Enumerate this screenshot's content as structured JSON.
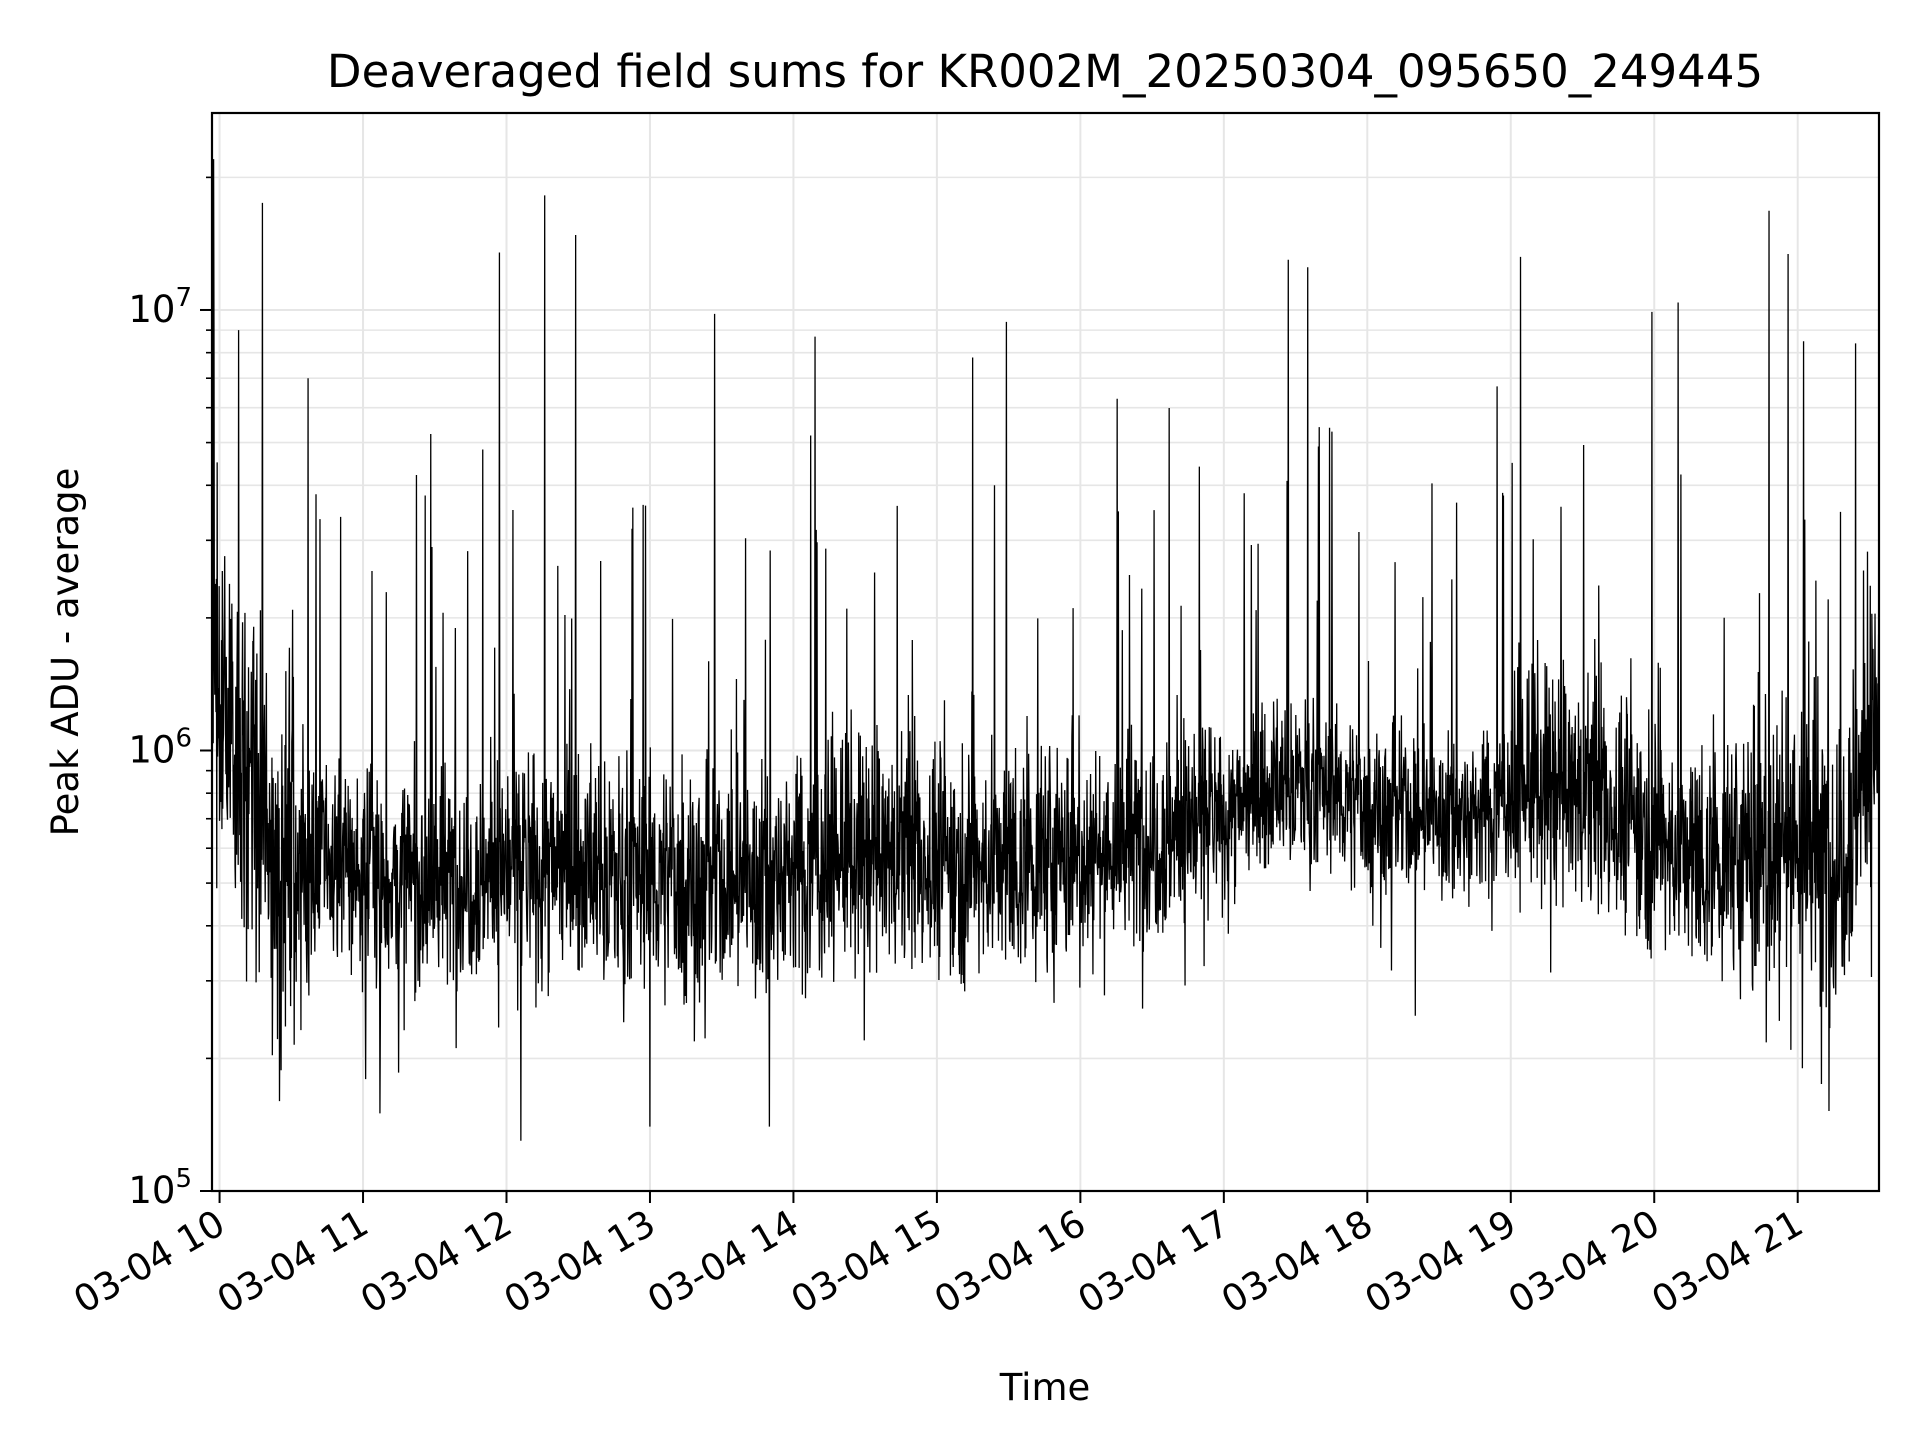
{
  "chart_data": {
    "type": "line",
    "title": "Deaveraged field sums for KR002M_20250304_095650_249445",
    "xlabel": "Time",
    "ylabel": "Peak ADU - average",
    "y_scale": "log",
    "ylim": [
      100000,
      28000000
    ],
    "y_ticks": [
      {
        "value": 100000,
        "base": "10",
        "exp": "5"
      },
      {
        "value": 1000000,
        "base": "10",
        "exp": "6"
      },
      {
        "value": 10000000,
        "base": "10",
        "exp": "7"
      }
    ],
    "xlim": [
      "2025-03-04 09:56:50",
      "2025-03-04 21:34:00"
    ],
    "x_ticks": [
      {
        "time": "2025-03-04 10:00",
        "label": "03-04 10"
      },
      {
        "time": "2025-03-04 11:00",
        "label": "03-04 11"
      },
      {
        "time": "2025-03-04 12:00",
        "label": "03-04 12"
      },
      {
        "time": "2025-03-04 13:00",
        "label": "03-04 13"
      },
      {
        "time": "2025-03-04 14:00",
        "label": "03-04 14"
      },
      {
        "time": "2025-03-04 15:00",
        "label": "03-04 15"
      },
      {
        "time": "2025-03-04 16:00",
        "label": "03-04 16"
      },
      {
        "time": "2025-03-04 17:00",
        "label": "03-04 17"
      },
      {
        "time": "2025-03-04 18:00",
        "label": "03-04 18"
      },
      {
        "time": "2025-03-04 19:00",
        "label": "03-04 19"
      },
      {
        "time": "2025-03-04 20:00",
        "label": "03-04 20"
      },
      {
        "time": "2025-03-04 21:00",
        "label": "03-04 21"
      }
    ],
    "grid": true,
    "line_color": "#000000",
    "grid_color": "#e6e6e6",
    "series": [
      {
        "x": [
          "2025-03-04 09:56:50",
          "2025-03-04 10:05",
          "2025-03-04 10:10",
          "2025-03-04 10:15",
          "2025-03-04 10:20",
          "2025-03-04 10:30",
          "2025-03-04 10:40",
          "2025-03-04 10:50",
          "2025-03-04 11:00",
          "2025-03-04 11:15",
          "2025-03-04 11:30",
          "2025-03-04 11:45",
          "2025-03-04 12:00",
          "2025-03-04 12:15",
          "2025-03-04 12:30",
          "2025-03-04 12:45",
          "2025-03-04 13:00",
          "2025-03-04 13:15",
          "2025-03-04 13:30",
          "2025-03-04 13:45",
          "2025-03-04 14:00",
          "2025-03-04 14:15",
          "2025-03-04 14:30",
          "2025-03-04 14:45",
          "2025-03-04 15:00",
          "2025-03-04 15:15",
          "2025-03-04 15:30",
          "2025-03-04 15:45",
          "2025-03-04 16:00",
          "2025-03-04 16:15",
          "2025-03-04 16:30",
          "2025-03-04 16:45",
          "2025-03-04 17:00",
          "2025-03-04 17:15",
          "2025-03-04 17:30",
          "2025-03-04 17:45",
          "2025-03-04 18:00",
          "2025-03-04 18:15",
          "2025-03-04 18:30",
          "2025-03-04 18:45",
          "2025-03-04 19:00",
          "2025-03-04 19:15",
          "2025-03-04 19:30",
          "2025-03-04 19:45",
          "2025-03-04 20:00",
          "2025-03-04 20:15",
          "2025-03-04 20:30",
          "2025-03-04 20:45",
          "2025-03-04 21:00",
          "2025-03-04 21:15",
          "2025-03-04 21:34"
        ],
        "y": [
          1500000,
          1200000,
          900000,
          700000,
          600000,
          550000,
          550000,
          560000,
          520000,
          500000,
          500000,
          520000,
          550000,
          560000,
          540000,
          520000,
          520000,
          500000,
          500000,
          500000,
          550000,
          560000,
          580000,
          580000,
          560000,
          550000,
          550000,
          560000,
          580000,
          600000,
          640000,
          680000,
          720000,
          780000,
          850000,
          800000,
          750000,
          720000,
          700000,
          720000,
          800000,
          830000,
          800000,
          720000,
          650000,
          560000,
          560000,
          600000,
          650000,
          550000,
          1200000
        ]
      }
    ],
    "peaks": [
      {
        "time": "2025-03-04 09:57:30",
        "value": 22000000
      },
      {
        "time": "2025-03-04 10:08",
        "value": 9000000
      },
      {
        "time": "2025-03-04 10:18",
        "value": 17500000
      },
      {
        "time": "2025-03-04 10:37",
        "value": 7000000
      },
      {
        "time": "2025-03-04 11:57",
        "value": 13500000
      },
      {
        "time": "2025-03-04 12:16",
        "value": 18200000
      },
      {
        "time": "2025-03-04 12:29",
        "value": 14800000
      },
      {
        "time": "2025-03-04 13:27",
        "value": 9800000
      },
      {
        "time": "2025-03-04 14:09",
        "value": 8700000
      },
      {
        "time": "2025-03-04 15:15",
        "value": 7800000
      },
      {
        "time": "2025-03-04 15:29",
        "value": 9400000
      },
      {
        "time": "2025-03-04 17:27",
        "value": 13000000
      },
      {
        "time": "2025-03-04 17:35",
        "value": 12500000
      },
      {
        "time": "2025-03-04 19:04",
        "value": 13200000
      },
      {
        "time": "2025-03-04 19:59",
        "value": 9900000
      },
      {
        "time": "2025-03-04 20:10",
        "value": 10400000
      },
      {
        "time": "2025-03-04 20:48",
        "value": 16800000
      },
      {
        "time": "2025-03-04 20:56",
        "value": 13400000
      }
    ],
    "dips": [
      {
        "time": "2025-03-04 10:25",
        "value": 160000
      },
      {
        "time": "2025-03-04 11:07",
        "value": 150000
      },
      {
        "time": "2025-03-04 12:06",
        "value": 130000
      },
      {
        "time": "2025-03-04 13:00",
        "value": 140000
      },
      {
        "time": "2025-03-04 13:50",
        "value": 140000
      },
      {
        "time": "2025-03-04 18:20",
        "value": 250000
      },
      {
        "time": "2025-03-04 21:02",
        "value": 190000
      },
      {
        "time": "2025-03-04 21:10",
        "value": 175000
      }
    ]
  }
}
